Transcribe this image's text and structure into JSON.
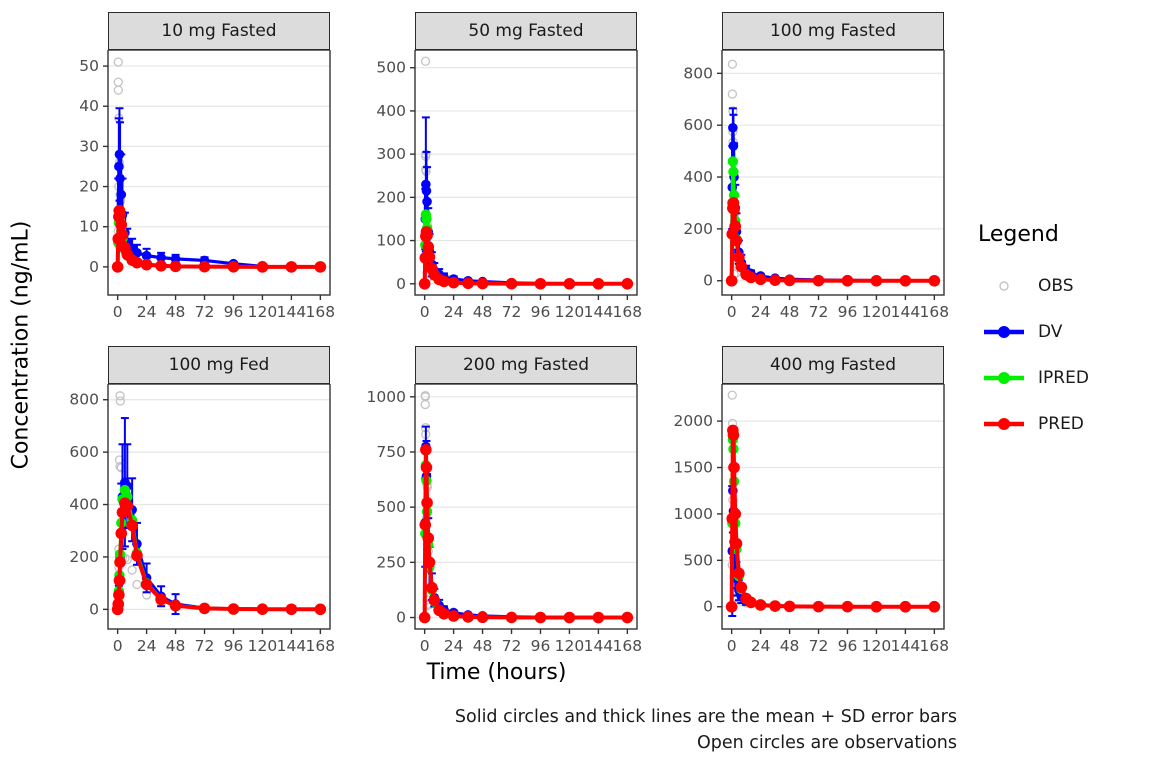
{
  "legend": {
    "title": "Legend",
    "items": [
      {
        "key": "OBS",
        "label": "OBS"
      },
      {
        "key": "DV",
        "label": "DV"
      },
      {
        "key": "IPRED",
        "label": "IPRED"
      },
      {
        "key": "PRED",
        "label": "PRED"
      }
    ]
  },
  "caption": {
    "line1": "Solid circles and thick lines are the mean + SD error bars",
    "line2": "Open circles are observations"
  },
  "chart_data": {
    "type": "line",
    "title": "",
    "xlabel": "Time (hours)",
    "ylabel": "Concentration (ng/mL)",
    "legend_position": "right",
    "grid": "horizontal-major-only",
    "x_ticks": [
      0,
      24,
      48,
      72,
      96,
      120,
      144,
      168
    ],
    "xlim": [
      -8,
      176
    ],
    "x": [
      0,
      0.5,
      1,
      1.5,
      2,
      3,
      4,
      6,
      8,
      12,
      16,
      24,
      36,
      48,
      72,
      96,
      120,
      144,
      168
    ],
    "colors": {
      "OBS": "#c4c4c4",
      "DV": "#0000ff",
      "IPRED": "#00f000",
      "PRED": "#ff0000"
    },
    "styles": {
      "strip_fill": "#dcdcdc",
      "strip_border": "#2b2b2b",
      "panel_border": "#333333",
      "grid": "#e6e6e6",
      "axis_text": "#4d4d4d",
      "tick": "#333333"
    },
    "panels": [
      {
        "title": "10 mg Fasted",
        "ylim": [
          -7,
          54
        ],
        "yticks": [
          0,
          10,
          20,
          30,
          40,
          50
        ],
        "dv": [
          0,
          14,
          25,
          28,
          22,
          18,
          13,
          8.5,
          6,
          4.5,
          3.5,
          2.8,
          2.3,
          2.0,
          1.6,
          0.8,
          0.1,
          0.05,
          0.05
        ],
        "dv_sd": [
          0,
          8,
          12,
          11.5,
          14,
          10,
          9,
          5,
          3.5,
          2.5,
          2,
          1.7,
          1.2,
          1,
          0.8,
          0.4,
          0.1,
          0.05,
          0.02
        ],
        "ipred": [
          0,
          6,
          11,
          12.5,
          11.5,
          9,
          7,
          4.2,
          2.8,
          1.6,
          1.0,
          0.5,
          0.25,
          0.12,
          0.04,
          0.01,
          0,
          0,
          0
        ],
        "pred": [
          0,
          7,
          12.5,
          14,
          13,
          10.5,
          8,
          4.8,
          3.1,
          1.7,
          1.05,
          0.55,
          0.27,
          0.13,
          0.05,
          0.02,
          0.01,
          0,
          0
        ],
        "obs": [
          [
            0.5,
            51
          ],
          [
            0.5,
            46
          ],
          [
            0.6,
            44
          ],
          [
            1,
            37
          ],
          [
            1.5,
            26
          ],
          [
            1.7,
            25
          ],
          [
            2.5,
            16.5
          ],
          [
            3,
            12.5
          ],
          [
            4,
            12
          ],
          [
            6,
            8.6
          ],
          [
            1,
            20
          ],
          [
            2,
            18
          ],
          [
            0.5,
            9
          ],
          [
            1.5,
            5
          ],
          [
            8,
            5
          ],
          [
            12,
            3.8
          ],
          [
            24,
            2
          ],
          [
            48,
            1
          ]
        ]
      },
      {
        "title": "50 mg Fasted",
        "ylim": [
          -26,
          541
        ],
        "yticks": [
          0,
          100,
          200,
          300,
          400,
          500
        ],
        "dv": [
          0,
          150,
          230,
          215,
          190,
          120,
          75,
          45,
          30,
          22,
          15,
          11,
          7,
          5,
          2,
          0.8,
          0.3,
          0.1,
          0.1
        ],
        "dv_sd": [
          0,
          70,
          155,
          90,
          80,
          55,
          40,
          28,
          18,
          12,
          9,
          6,
          4,
          3,
          1.2,
          0.4,
          0.2,
          0.1,
          0.05
        ],
        "ipred": [
          0,
          90,
          160,
          150,
          128,
          88,
          60,
          32,
          19,
          9,
          5,
          2.2,
          1,
          0.5,
          0.15,
          0.05,
          0,
          0,
          0
        ],
        "pred": [
          0,
          60,
          110,
          120,
          112,
          85,
          62,
          35,
          21,
          10,
          5.5,
          2.5,
          1.1,
          0.55,
          0.17,
          0.06,
          0.02,
          0,
          0
        ],
        "obs": [
          [
            0.75,
            515
          ],
          [
            1,
            300
          ],
          [
            0.9,
            295
          ],
          [
            0.75,
            265
          ],
          [
            1.2,
            260
          ],
          [
            2.5,
            135
          ],
          [
            1.5,
            90
          ],
          [
            2,
            85
          ],
          [
            3,
            70
          ],
          [
            4,
            55
          ],
          [
            6,
            42
          ],
          [
            8,
            30
          ],
          [
            12,
            22
          ],
          [
            16,
            15
          ],
          [
            24,
            10
          ],
          [
            2,
            25
          ],
          [
            3,
            15
          ],
          [
            48,
            5
          ]
        ]
      },
      {
        "title": "100 mg Fasted",
        "ylim": [
          -55,
          890
        ],
        "yticks": [
          0,
          200,
          400,
          600,
          800
        ],
        "dv": [
          0,
          360,
          590,
          520,
          400,
          280,
          190,
          110,
          70,
          40,
          28,
          18,
          10,
          6,
          3,
          1.5,
          0.5,
          0.2,
          0.1
        ],
        "dv_sd": [
          0,
          160,
          75,
          120,
          130,
          90,
          70,
          45,
          30,
          18,
          12,
          8,
          5,
          3,
          1.5,
          0.8,
          0.4,
          0.2,
          0.1
        ],
        "ipred": [
          0,
          300,
          460,
          420,
          330,
          230,
          160,
          88,
          52,
          22,
          12,
          5,
          2,
          1,
          0.3,
          0.1,
          0,
          0,
          0
        ],
        "pred": [
          0,
          180,
          280,
          300,
          275,
          210,
          155,
          90,
          55,
          24,
          13,
          5.5,
          2.2,
          1.1,
          0.33,
          0.1,
          0,
          0,
          0
        ],
        "obs": [
          [
            0.6,
            835
          ],
          [
            0.6,
            720
          ],
          [
            1,
            655
          ],
          [
            1,
            575
          ],
          [
            1.2,
            535
          ],
          [
            2,
            300
          ],
          [
            2.2,
            270
          ],
          [
            2.5,
            250
          ],
          [
            1.5,
            210
          ],
          [
            3,
            160
          ],
          [
            6,
            105
          ],
          [
            4,
            95
          ],
          [
            8,
            65
          ],
          [
            5,
            60
          ],
          [
            12,
            35
          ],
          [
            4,
            30
          ],
          [
            2,
            25
          ],
          [
            24,
            20
          ]
        ]
      },
      {
        "title": "100 mg Fed",
        "ylim": [
          -75,
          860
        ],
        "yticks": [
          0,
          200,
          400,
          600,
          800
        ],
        "dv": [
          0,
          20,
          60,
          120,
          200,
          330,
          430,
          485,
          470,
          380,
          250,
          120,
          50,
          20,
          5,
          2,
          1,
          0.5,
          0.3
        ],
        "dv_sd": [
          0,
          10,
          30,
          60,
          90,
          150,
          200,
          245,
          160,
          120,
          80,
          55,
          38,
          38,
          10,
          4,
          2,
          1,
          0.5
        ],
        "ipred": [
          0,
          25,
          70,
          130,
          210,
          330,
          420,
          455,
          430,
          340,
          215,
          100,
          40,
          15,
          4,
          1.5,
          0.8,
          0.4,
          0.2
        ],
        "pred": [
          0,
          20,
          55,
          110,
          180,
          290,
          370,
          405,
          395,
          320,
          205,
          95,
          38,
          14,
          3.5,
          1.2,
          0.6,
          0.3,
          0.15
        ],
        "obs": [
          [
            2,
            815
          ],
          [
            2.2,
            795
          ],
          [
            1.5,
            570
          ],
          [
            2,
            545
          ],
          [
            3,
            540
          ],
          [
            6,
            420
          ],
          [
            1,
            230
          ],
          [
            4,
            200
          ],
          [
            6,
            195
          ],
          [
            8,
            190
          ],
          [
            12,
            150
          ],
          [
            3,
            110
          ],
          [
            16,
            95
          ],
          [
            24,
            55
          ],
          [
            1,
            160
          ],
          [
            36,
            25
          ],
          [
            48,
            18
          ],
          [
            4,
            330
          ]
        ]
      },
      {
        "title": "200 mg Fasted",
        "ylim": [
          -52,
          1058
        ],
        "yticks": [
          0,
          250,
          500,
          750,
          1000
        ],
        "dv": [
          0,
          430,
          775,
          640,
          480,
          330,
          230,
          140,
          90,
          55,
          35,
          22,
          12,
          7,
          3,
          1.5,
          0.5,
          0.2,
          0.1
        ],
        "dv_sd": [
          0,
          200,
          90,
          160,
          170,
          120,
          90,
          60,
          40,
          25,
          16,
          10,
          6,
          4,
          2,
          1,
          0.5,
          0.2,
          0.1
        ],
        "ipred": [
          0,
          380,
          690,
          620,
          480,
          330,
          230,
          125,
          72,
          30,
          16,
          6.5,
          2.6,
          1.3,
          0.4,
          0.12,
          0,
          0,
          0
        ],
        "pred": [
          0,
          420,
          760,
          680,
          520,
          360,
          250,
          135,
          78,
          33,
          17,
          7,
          2.8,
          1.4,
          0.4,
          0.13,
          0,
          0,
          0
        ],
        "obs": [
          [
            0.5,
            1005
          ],
          [
            0.6,
            1000
          ],
          [
            0.5,
            965
          ],
          [
            0.75,
            860
          ],
          [
            0.9,
            830
          ],
          [
            2,
            600
          ],
          [
            2.2,
            590
          ],
          [
            1.5,
            450
          ],
          [
            3,
            300
          ],
          [
            4,
            220
          ],
          [
            2,
            80
          ],
          [
            2.5,
            60
          ],
          [
            3,
            55
          ],
          [
            6,
            120
          ],
          [
            8,
            80
          ],
          [
            12,
            50
          ],
          [
            24,
            25
          ],
          [
            48,
            10
          ]
        ]
      },
      {
        "title": "400 mg Fasted",
        "ylim": [
          -240,
          2400
        ],
        "yticks": [
          0,
          500,
          1000,
          1500,
          2000
        ],
        "dv": [
          0,
          600,
          1250,
          1030,
          700,
          450,
          300,
          180,
          110,
          60,
          38,
          22,
          12,
          7,
          3,
          1.5,
          0.5,
          0.2,
          0.1
        ],
        "dv_sd": [
          0,
          700,
          450,
          500,
          350,
          250,
          180,
          110,
          70,
          40,
          25,
          15,
          8,
          5,
          2.5,
          1.2,
          0.6,
          0.3,
          0.15
        ],
        "ipred": [
          0,
          900,
          1800,
          1700,
          1350,
          900,
          620,
          330,
          190,
          80,
          42,
          17,
          7,
          3.4,
          1,
          0.3,
          0,
          0,
          0
        ],
        "pred": [
          0,
          950,
          1900,
          1850,
          1500,
          1000,
          680,
          360,
          210,
          88,
          46,
          19,
          7.5,
          3.7,
          1.1,
          0.35,
          0,
          0,
          0
        ],
        "obs": [
          [
            0.5,
            2280
          ],
          [
            0.75,
            1975
          ],
          [
            0.6,
            1500
          ],
          [
            1,
            1150
          ],
          [
            2,
            600
          ],
          [
            1.5,
            500
          ],
          [
            2,
            320
          ],
          [
            2.5,
            310
          ],
          [
            3,
            100
          ],
          [
            4,
            80
          ],
          [
            1,
            600
          ],
          [
            6,
            330
          ],
          [
            2,
            95
          ],
          [
            8,
            60
          ],
          [
            0.5,
            450
          ],
          [
            12,
            40
          ],
          [
            24,
            20
          ],
          [
            48,
            10
          ]
        ]
      }
    ]
  }
}
